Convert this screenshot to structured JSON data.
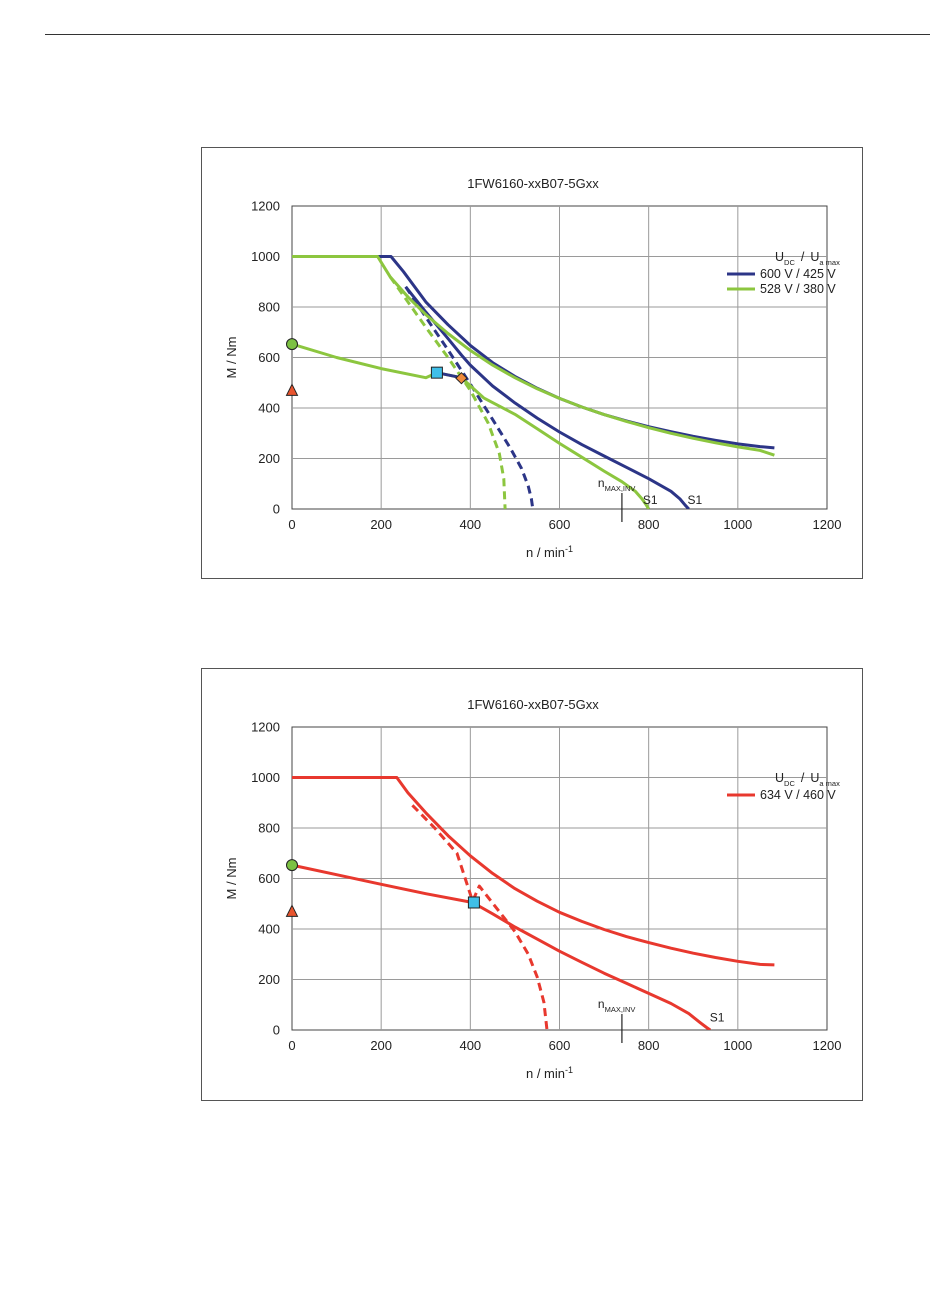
{
  "chart_data": [
    {
      "type": "line",
      "title": "1FW6160-xxB07-5Gxx",
      "xlabel": "n / min",
      "xlabel_sup": "-1",
      "ylabel": "M / Nm",
      "xlim": [
        0,
        1200
      ],
      "ylim": [
        0,
        1200
      ],
      "xticks": [
        "0",
        "200",
        "400",
        "600",
        "800",
        "1000",
        "1200"
      ],
      "yticks": [
        "0",
        "200",
        "400",
        "600",
        "800",
        "1000",
        "1200"
      ],
      "grid": true,
      "legend_position": "top-right",
      "legend_title": {
        "u": "U",
        "dc": "DC",
        "sep": "/",
        "ua": "U",
        "amax": "a max"
      },
      "nmax_label": {
        "n": "n",
        "sub": "MAX,INV"
      },
      "nmax_value": 740,
      "s1_label": "S1",
      "series": [
        {
          "name": "600 V / 425 V",
          "color": "#2c3587",
          "style": "solid",
          "points": [
            [
              0,
              1000
            ],
            [
              222,
              1000
            ],
            [
              250,
              940
            ],
            [
              300,
              820
            ],
            [
              350,
              730
            ],
            [
              400,
              648
            ],
            [
              450,
              580
            ],
            [
              500,
              525
            ],
            [
              550,
              478
            ],
            [
              600,
              438
            ],
            [
              650,
              404
            ],
            [
              700,
              374
            ],
            [
              750,
              349
            ],
            [
              800,
              326
            ],
            [
              850,
              306
            ],
            [
              900,
              288
            ],
            [
              950,
              272
            ],
            [
              1000,
              258
            ],
            [
              1050,
              247
            ],
            [
              1082,
              242
            ]
          ]
        },
        {
          "name": "",
          "color": "#2c3587",
          "style": "solid",
          "points": [
            [
              255,
              880
            ],
            [
              300,
              780
            ],
            [
              350,
              675
            ],
            [
              380,
              610
            ],
            [
              400,
              570
            ],
            [
              450,
              487
            ],
            [
              500,
              420
            ],
            [
              550,
              360
            ],
            [
              600,
              305
            ],
            [
              650,
              255
            ],
            [
              700,
              210
            ],
            [
              750,
              165
            ],
            [
              800,
              120
            ],
            [
              850,
              70
            ],
            [
              870,
              40
            ],
            [
              882,
              15
            ],
            [
              890,
              0
            ]
          ]
        },
        {
          "name": "",
          "color": "#2c3587",
          "style": "dashed",
          "points": [
            [
              255,
              880
            ],
            [
              300,
              760
            ],
            [
              350,
              630
            ],
            [
              400,
              495
            ],
            [
              450,
              355
            ],
            [
              490,
              240
            ],
            [
              515,
              160
            ],
            [
              530,
              90
            ],
            [
              537,
              40
            ],
            [
              540,
              0
            ]
          ]
        },
        {
          "name": "528 V / 380 V",
          "color": "#8cc63f",
          "style": "solid",
          "points": [
            [
              0,
              1000
            ],
            [
              192,
              1000
            ],
            [
              220,
              920
            ],
            [
              260,
              840
            ],
            [
              300,
              770
            ],
            [
              350,
              695
            ],
            [
              400,
              628
            ],
            [
              450,
              570
            ],
            [
              500,
              520
            ],
            [
              550,
              476
            ],
            [
              600,
              438
            ],
            [
              650,
              404
            ],
            [
              700,
              374
            ],
            [
              750,
              347
            ],
            [
              800,
              322
            ],
            [
              850,
              300
            ],
            [
              900,
              280
            ],
            [
              950,
              262
            ],
            [
              1000,
              246
            ],
            [
              1050,
              232
            ],
            [
              1082,
              213
            ]
          ]
        },
        {
          "name": "",
          "color": "#8cc63f",
          "style": "solid",
          "points": [
            [
              0,
              653
            ],
            [
              100,
              600
            ],
            [
              200,
              556
            ],
            [
              300,
              520
            ],
            [
              325,
              540
            ],
            [
              380,
              520
            ],
            [
              430,
              440
            ],
            [
              500,
              375
            ],
            [
              550,
              318
            ],
            [
              600,
              260
            ],
            [
              650,
              205
            ],
            [
              700,
              150
            ],
            [
              740,
              108
            ],
            [
              770,
              70
            ],
            [
              785,
              40
            ],
            [
              795,
              15
            ],
            [
              800,
              0
            ]
          ]
        },
        {
          "name": "",
          "color": "#8cc63f",
          "style": "dashed",
          "points": [
            [
              220,
              920
            ],
            [
              260,
              820
            ],
            [
              300,
              720
            ],
            [
              350,
              600
            ],
            [
              400,
              470
            ],
            [
              440,
              340
            ],
            [
              465,
              220
            ],
            [
              475,
              120
            ],
            [
              478,
              0
            ]
          ]
        },
        {
          "name": "",
          "color": "#2c3587",
          "style": "solid",
          "points": [
            [
              325,
              540
            ],
            [
              380,
              520
            ]
          ]
        }
      ],
      "markers": [
        {
          "shape": "circle",
          "x": 0,
          "y": 653,
          "color": "#7cc142"
        },
        {
          "shape": "triangle",
          "x": 0,
          "y": 470,
          "color": "#e8542e"
        },
        {
          "shape": "square",
          "x": 325,
          "y": 540,
          "color": "#3fbfe8"
        },
        {
          "shape": "diamond",
          "x": 380,
          "y": 518,
          "color": "#f08a3c"
        }
      ],
      "s1_positions": [
        {
          "x": 805,
          "y": 35
        },
        {
          "x": 905,
          "y": 35
        }
      ]
    },
    {
      "type": "line",
      "title": "1FW6160-xxB07-5Gxx",
      "xlabel": "n / min",
      "xlabel_sup": "-1",
      "ylabel": "M / Nm",
      "xlim": [
        0,
        1200
      ],
      "ylim": [
        0,
        1200
      ],
      "xticks": [
        "0",
        "200",
        "400",
        "600",
        "800",
        "1000",
        "1200"
      ],
      "yticks": [
        "0",
        "200",
        "400",
        "600",
        "800",
        "1000",
        "1200"
      ],
      "grid": true,
      "legend_position": "top-right",
      "legend_title": {
        "u": "U",
        "dc": "DC",
        "sep": "/",
        "ua": "U",
        "amax": "a max"
      },
      "nmax_label": {
        "n": "n",
        "sub": "MAX,INV"
      },
      "nmax_value": 740,
      "s1_label": "S1",
      "series": [
        {
          "name": "634 V / 460 V",
          "color": "#e8382e",
          "style": "solid",
          "points": [
            [
              0,
              1000
            ],
            [
              235,
              1000
            ],
            [
              260,
              940
            ],
            [
              300,
              860
            ],
            [
              350,
              770
            ],
            [
              400,
              690
            ],
            [
              450,
              620
            ],
            [
              500,
              560
            ],
            [
              550,
              510
            ],
            [
              600,
              466
            ],
            [
              650,
              430
            ],
            [
              700,
              398
            ],
            [
              750,
              370
            ],
            [
              800,
              346
            ],
            [
              850,
              324
            ],
            [
              900,
              304
            ],
            [
              950,
              287
            ],
            [
              1000,
              272
            ],
            [
              1050,
              260
            ],
            [
              1082,
              258
            ]
          ]
        },
        {
          "name": "",
          "color": "#e8382e",
          "style": "solid",
          "points": [
            [
              0,
              653
            ],
            [
              100,
              615
            ],
            [
              200,
              577
            ],
            [
              300,
              540
            ],
            [
              405,
              505
            ],
            [
              450,
              460
            ],
            [
              500,
              408
            ],
            [
              550,
              360
            ],
            [
              600,
              312
            ],
            [
              650,
              268
            ],
            [
              700,
              225
            ],
            [
              750,
              185
            ],
            [
              800,
              145
            ],
            [
              850,
              105
            ],
            [
              890,
              65
            ],
            [
              915,
              30
            ],
            [
              930,
              10
            ],
            [
              938,
              0
            ]
          ]
        },
        {
          "name": "",
          "color": "#e8382e",
          "style": "dashed",
          "points": [
            [
              270,
              890
            ],
            [
              320,
              800
            ],
            [
              370,
              700
            ],
            [
              405,
              510
            ],
            [
              420,
              570
            ],
            [
              460,
              480
            ],
            [
              500,
              390
            ],
            [
              530,
              300
            ],
            [
              550,
              210
            ],
            [
              565,
              110
            ],
            [
              572,
              0
            ]
          ]
        }
      ],
      "markers": [
        {
          "shape": "circle",
          "x": 0,
          "y": 653,
          "color": "#7cc142"
        },
        {
          "shape": "triangle",
          "x": 0,
          "y": 470,
          "color": "#e8542e"
        },
        {
          "shape": "square",
          "x": 408,
          "y": 505,
          "color": "#3fbfe8"
        }
      ],
      "s1_positions": [
        {
          "x": 955,
          "y": 50
        }
      ]
    }
  ]
}
